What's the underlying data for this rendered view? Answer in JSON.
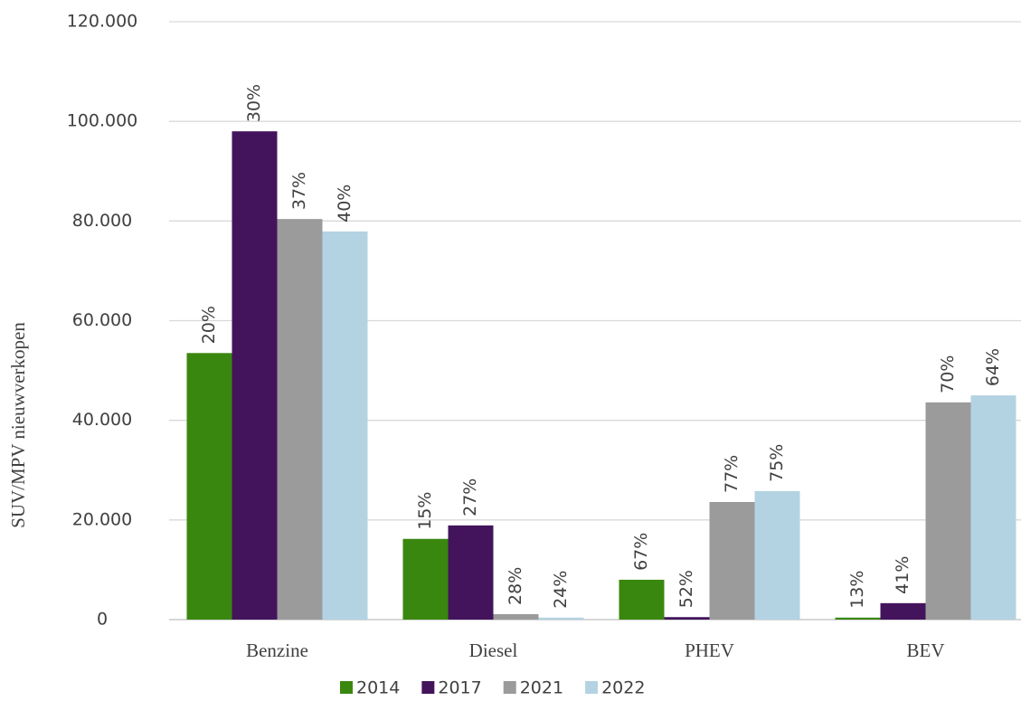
{
  "chart_data": {
    "type": "bar",
    "y_label": "SUV/MPV nieuwverkopen",
    "categories": [
      "Benzine",
      "Diesel",
      "PHEV",
      "BEV"
    ],
    "series": [
      {
        "name": "2014",
        "color": "#3a870f",
        "values": [
          53500,
          16200,
          8000,
          400
        ],
        "labels": [
          "20%",
          "15%",
          "67%",
          "13%"
        ]
      },
      {
        "name": "2017",
        "color": "#43145c",
        "values": [
          98000,
          18900,
          500,
          3300
        ],
        "labels": [
          "30%",
          "27%",
          "52%",
          "41%"
        ]
      },
      {
        "name": "2021",
        "color": "#9b9b9b",
        "values": [
          80400,
          1100,
          23600,
          43600
        ],
        "labels": [
          "37%",
          "28%",
          "77%",
          "70%"
        ]
      },
      {
        "name": "2022",
        "color": "#b3d3e2",
        "values": [
          77900,
          400,
          25800,
          45000
        ],
        "labels": [
          "40%",
          "24%",
          "75%",
          "64%"
        ]
      }
    ],
    "ylim": [
      0,
      120000
    ],
    "yticks": [
      0,
      {
        "value": 20000,
        "label": "20.000"
      },
      {
        "value": 40000,
        "label": "40.000"
      },
      {
        "value": 60000,
        "label": "60.000"
      },
      {
        "value": 80000,
        "label": "80.000"
      },
      {
        "value": 100000,
        "label": "100.000"
      },
      {
        "value": 120000,
        "label": "120.000"
      }
    ],
    "grid": true,
    "legend": "bottom"
  }
}
